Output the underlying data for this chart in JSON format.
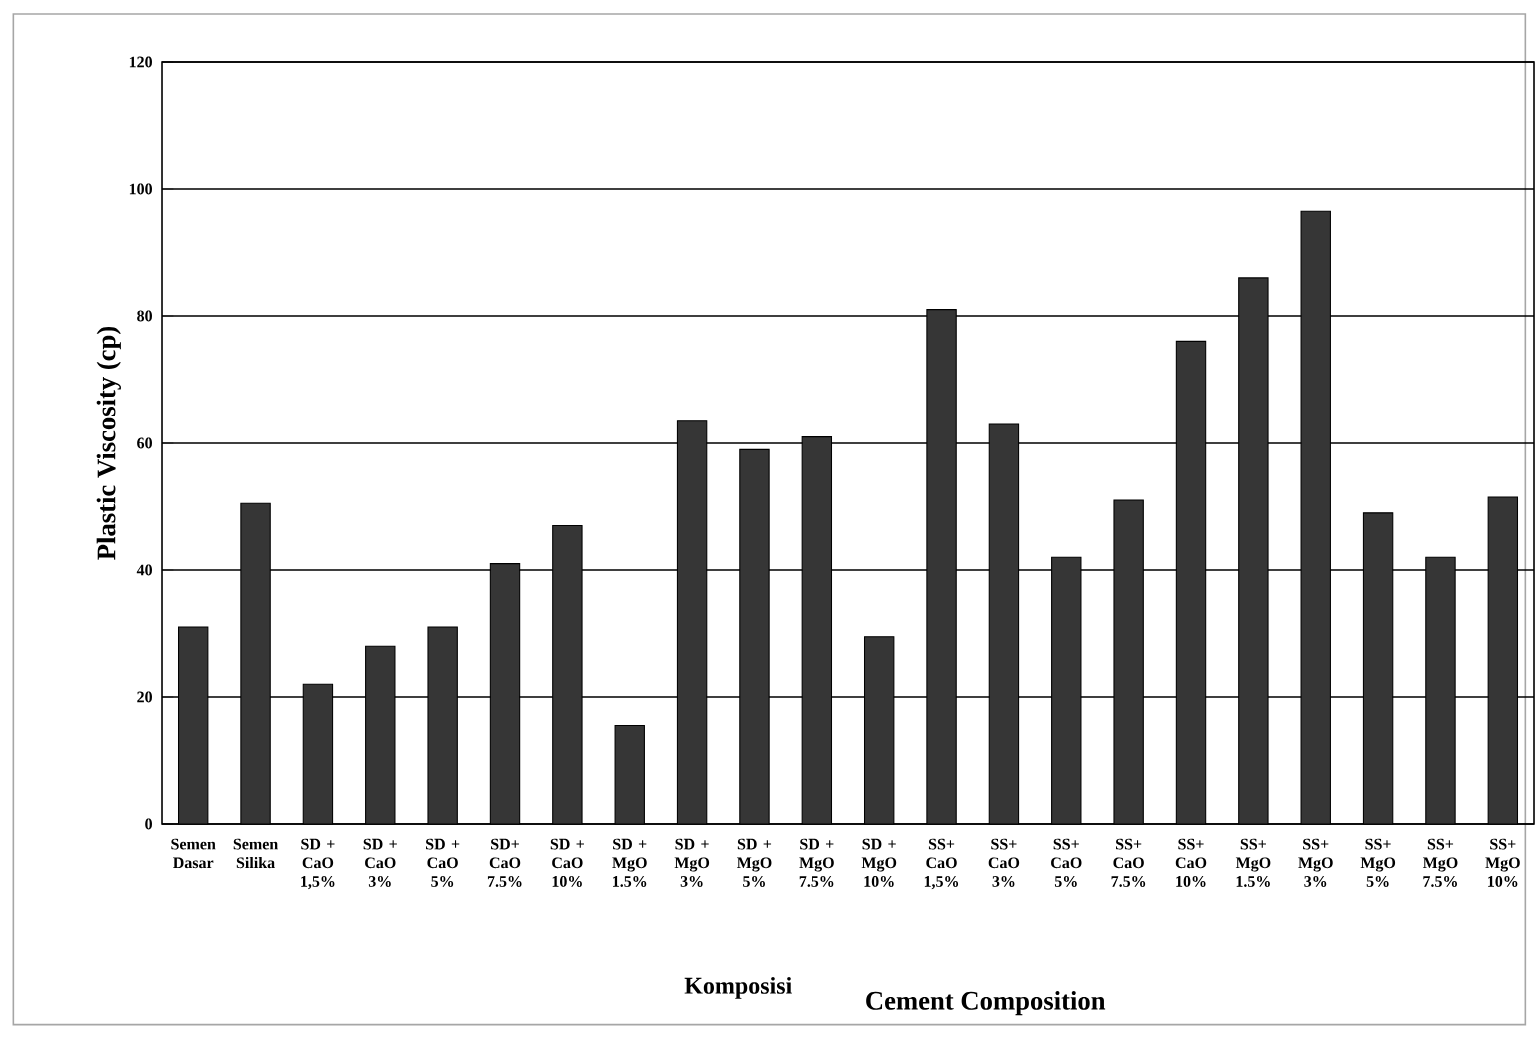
{
  "chart_data": {
    "type": "bar",
    "xlabel": "Komposisi",
    "ylabel": "Plastic Viscosity (cp)",
    "annotations": [
      "Cement Composition"
    ],
    "categories": [
      "Semen Dasar",
      "Semen Silika",
      "SD + CaO 1,5%",
      "SD + CaO 3%",
      "SD + CaO 5%",
      "SD+ CaO 7.5%",
      "SD + CaO 10%",
      "SD + MgO 1.5%",
      "SD + MgO 3%",
      "SD + MgO 5%",
      "SD + MgO 7.5%",
      "SD + MgO 10%",
      "SS+ CaO 1,5%",
      "SS+ CaO 3%",
      "SS+ CaO 5%",
      "SS+ CaO 7.5%",
      "SS+ CaO 10%",
      "SS+ MgO 1.5%",
      "SS+ MgO 3%",
      "SS+ MgO 5%",
      "SS+ MgO 7.5%",
      "SS+ MgO 10%"
    ],
    "values": [
      31,
      50.5,
      22,
      28,
      31,
      41,
      47,
      15.5,
      63.5,
      59,
      61,
      29.5,
      81,
      63,
      42,
      51,
      76,
      86,
      96.5,
      49,
      42,
      51.5
    ],
    "color": "#363636",
    "ylim": [
      0,
      120
    ],
    "yticks": [
      0,
      20,
      40,
      60,
      80,
      100,
      120
    ],
    "grid": "y"
  }
}
